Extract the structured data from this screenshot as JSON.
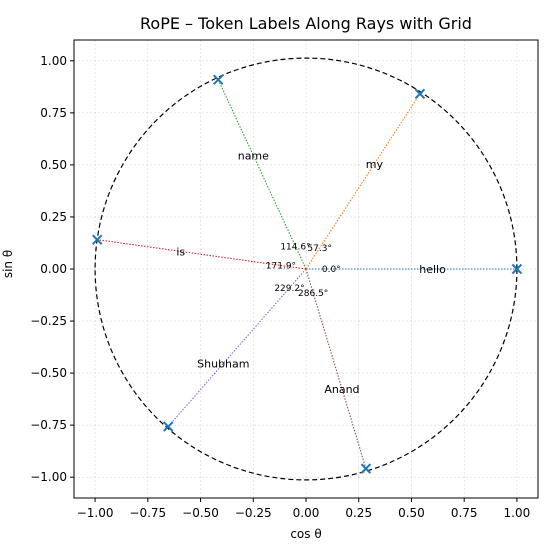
{
  "chart_data": {
    "type": "scatter",
    "title": "RoPE – Token Labels Along Rays with Grid",
    "xlabel": "cos θ",
    "ylabel": "sin θ",
    "xlim": [
      -1.1,
      1.1
    ],
    "ylim": [
      -1.1,
      1.1
    ],
    "xticks": [
      -1.0,
      -0.75,
      -0.5,
      -0.25,
      0.0,
      0.25,
      0.5,
      0.75,
      1.0
    ],
    "xtick_labels": [
      "−1.00",
      "−0.75",
      "−0.50",
      "−0.25",
      "0.00",
      "0.25",
      "0.50",
      "0.75",
      "1.00"
    ],
    "yticks": [
      1.0,
      0.75,
      0.5,
      0.25,
      0.0,
      -0.25,
      -0.5,
      -0.75,
      -1.0
    ],
    "ytick_labels": [
      "1.00",
      "0.75",
      "0.50",
      "0.25",
      "0.00",
      "−0.25",
      "−0.50",
      "−0.75",
      "−1.00"
    ],
    "grid": true,
    "unit_circle": true,
    "marker": "x",
    "marker_color": "#1f77b4",
    "tokens": [
      {
        "token": "hello",
        "angle_label": "0.0°",
        "angle_deg": 0.0,
        "color": "#1f77b4"
      },
      {
        "token": "my",
        "angle_label": "57.3°",
        "angle_deg": 57.3,
        "color": "#ff7f0e"
      },
      {
        "token": "name",
        "angle_label": "114.6°",
        "angle_deg": 114.6,
        "color": "#2ca02c"
      },
      {
        "token": "is",
        "angle_label": "171.9°",
        "angle_deg": 171.9,
        "color": "#d62728"
      },
      {
        "token": "Shubham",
        "angle_label": "229.2°",
        "angle_deg": 229.2,
        "color": "#9467bd"
      },
      {
        "token": "Anand",
        "angle_label": "286.5°",
        "angle_deg": 286.5,
        "color": "#8c564b"
      }
    ]
  }
}
